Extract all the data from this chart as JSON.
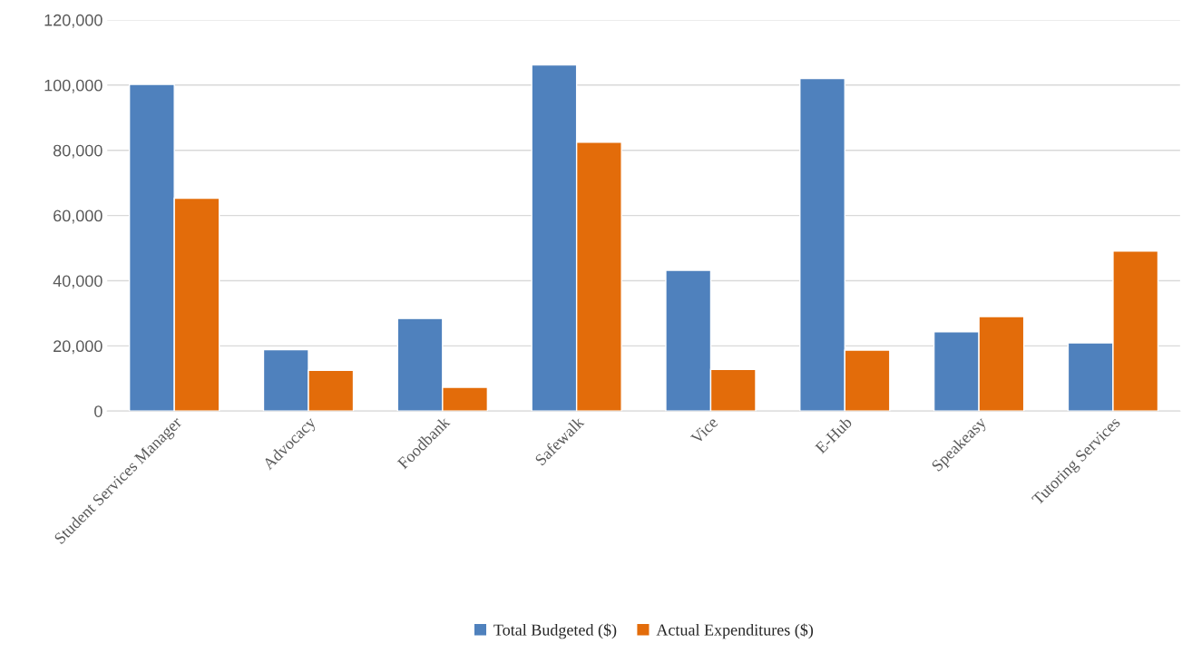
{
  "chart_data": {
    "type": "bar",
    "categories": [
      "Student Services Manager",
      "Advocacy",
      "Foodbank",
      "Safewalk",
      "Vice",
      "E-Hub",
      "Speakeasy",
      "Tutoring Services"
    ],
    "series": [
      {
        "name": "Total Budgeted ($)",
        "color": "#4f81bd",
        "values": [
          100200,
          18800,
          28400,
          106200,
          43200,
          102000,
          24300,
          20900
        ]
      },
      {
        "name": "Actual Expenditures ($)",
        "color": "#e36c0a",
        "values": [
          65300,
          12500,
          7300,
          82500,
          12800,
          18700,
          29000,
          49100
        ]
      }
    ],
    "ylim": [
      0,
      120000
    ],
    "yticks": [
      {
        "value": 0,
        "label": "0"
      },
      {
        "value": 20000,
        "label": "20,000"
      },
      {
        "value": 40000,
        "label": "40,000"
      },
      {
        "value": 60000,
        "label": "60,000"
      },
      {
        "value": 80000,
        "label": "80,000"
      },
      {
        "value": 100000,
        "label": "100,000"
      },
      {
        "value": 120000,
        "label": "120,000"
      }
    ],
    "grid": "y",
    "legend": "bottom"
  }
}
